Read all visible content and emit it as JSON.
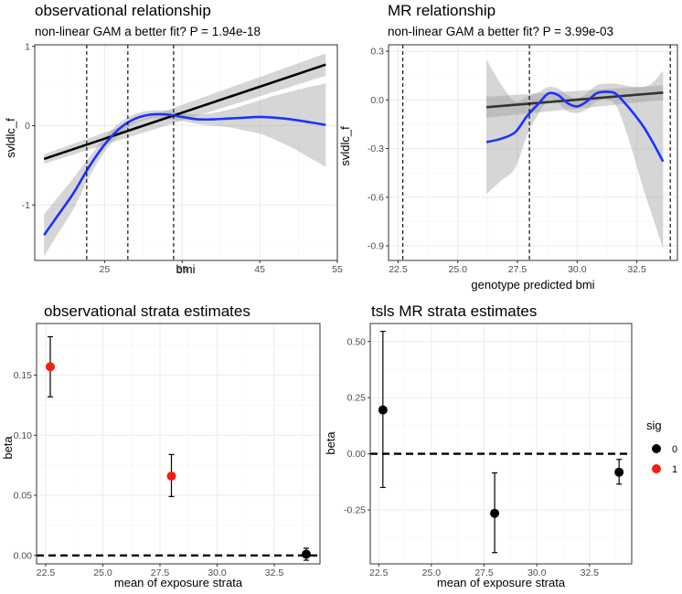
{
  "colors": {
    "linear_fit": "#000000",
    "mr_linear_fit": "#333333",
    "gam_fit": "#1a33ff",
    "ci_band": "#999999",
    "sig_0": "#000000",
    "sig_1": "#f2200d"
  },
  "legend": {
    "title": "sig",
    "items": [
      {
        "label": "0",
        "color": "#000000"
      },
      {
        "label": "1",
        "color": "#f2200d"
      }
    ]
  },
  "chart_data": [
    {
      "type": "line",
      "title": "observational relationship",
      "subtitle": "non-linear GAM a better fit? P = 1.94e-18",
      "xlabel": "bmi",
      "ylabel": "svldlc_f",
      "xlim": [
        16,
        55
      ],
      "ylim": [
        -1.7,
        1.02
      ],
      "xticks": [
        25,
        35,
        45,
        55
      ],
      "xtick_labels": [
        "25",
        "35",
        "45",
        "55"
      ],
      "yticks": [
        -1,
        0,
        1
      ],
      "ytick_labels": [
        "-1",
        "0",
        "1"
      ],
      "vlines": [
        22.7,
        28.0,
        33.9
      ],
      "series": [
        {
          "kind": "linear_fit",
          "x": [
            17.2,
            53.5
          ],
          "y": [
            -0.42,
            0.77
          ],
          "ci_lower": [
            -0.48,
            0.63
          ],
          "ci_upper": [
            -0.36,
            0.91
          ]
        },
        {
          "kind": "gam_fit",
          "x": [
            17.2,
            19,
            21,
            23,
            25,
            27,
            29,
            31,
            33,
            35,
            37,
            39,
            41,
            43,
            45,
            47,
            49,
            51,
            53.5
          ],
          "y": [
            -1.38,
            -1.13,
            -0.85,
            -0.52,
            -0.24,
            -0.03,
            0.09,
            0.14,
            0.14,
            0.11,
            0.08,
            0.08,
            0.09,
            0.1,
            0.11,
            0.1,
            0.08,
            0.05,
            0.01
          ],
          "ci_lower": [
            -1.65,
            -1.36,
            -1.05,
            -0.65,
            -0.33,
            -0.1,
            0.03,
            0.09,
            0.09,
            0.06,
            0.02,
            0.0,
            -0.02,
            -0.06,
            -0.1,
            -0.18,
            -0.27,
            -0.38,
            -0.52
          ],
          "ci_upper": [
            -1.12,
            -0.9,
            -0.66,
            -0.4,
            -0.15,
            0.04,
            0.15,
            0.19,
            0.19,
            0.16,
            0.14,
            0.16,
            0.2,
            0.26,
            0.32,
            0.38,
            0.43,
            0.48,
            0.53
          ]
        }
      ]
    },
    {
      "type": "line",
      "title": "MR relationship",
      "subtitle": "non-linear GAM a better fit? P = 3.99e-03",
      "xlabel": "genotype predicted bmi",
      "ylabel": "svldlc_f",
      "xlim": [
        22.1,
        34.2
      ],
      "ylim": [
        -0.99,
        0.34
      ],
      "xticks": [
        22.5,
        25,
        27.5,
        30,
        32.5
      ],
      "xtick_labels": [
        "22.5",
        "25.0",
        "27.5",
        "30.0",
        "32.5"
      ],
      "yticks": [
        -0.9,
        -0.6,
        -0.3,
        0,
        0.3
      ],
      "ytick_labels": [
        "-0.9",
        "-0.6",
        "-0.3",
        "0.0",
        "0.3"
      ],
      "vlines": [
        22.7,
        28.0,
        33.9
      ],
      "series": [
        {
          "kind": "linear_fit",
          "x": [
            26.2,
            33.6
          ],
          "y": [
            -0.045,
            0.045
          ],
          "ci_lower": [
            -0.11,
            0.0
          ],
          "ci_upper": [
            0.02,
            0.09
          ]
        },
        {
          "kind": "gam_fit",
          "x": [
            26.2,
            26.8,
            27.4,
            27.9,
            28.4,
            28.8,
            29.2,
            29.6,
            30.0,
            30.4,
            30.8,
            31.2,
            31.6,
            32.0,
            32.4,
            32.8,
            33.2,
            33.6
          ],
          "y": [
            -0.26,
            -0.24,
            -0.2,
            -0.1,
            -0.02,
            0.04,
            0.03,
            -0.02,
            -0.04,
            -0.01,
            0.04,
            0.05,
            0.04,
            -0.02,
            -0.09,
            -0.17,
            -0.27,
            -0.38
          ],
          "ci_lower": [
            -0.58,
            -0.5,
            -0.42,
            -0.22,
            -0.08,
            0.0,
            -0.02,
            -0.07,
            -0.08,
            -0.06,
            -0.01,
            0.0,
            -0.03,
            -0.17,
            -0.36,
            -0.56,
            -0.74,
            -0.92
          ],
          "ci_upper": [
            0.25,
            0.1,
            -0.01,
            0.02,
            0.05,
            0.08,
            0.07,
            0.03,
            0.01,
            0.04,
            0.09,
            0.1,
            0.1,
            0.09,
            0.08,
            0.08,
            0.11,
            0.18
          ]
        }
      ]
    },
    {
      "type": "scatter",
      "title": "observational strata estimates",
      "xlabel": "mean of exposure strata",
      "ylabel": "beta",
      "xlim": [
        22.1,
        34.5
      ],
      "ylim": [
        -0.007,
        0.193
      ],
      "xticks": [
        22.5,
        25,
        27.5,
        30,
        32.5
      ],
      "xtick_labels": [
        "22.5",
        "25.0",
        "27.5",
        "30.0",
        "32.5"
      ],
      "yticks": [
        0,
        0.05,
        0.1,
        0.15
      ],
      "ytick_labels": [
        "0.00",
        "0.05",
        "0.10",
        "0.15"
      ],
      "hline": 0,
      "points": [
        {
          "x": 22.7,
          "y": 0.157,
          "lower": 0.132,
          "upper": 0.182,
          "sig": "1"
        },
        {
          "x": 28.0,
          "y": 0.066,
          "lower": 0.049,
          "upper": 0.084,
          "sig": "1"
        },
        {
          "x": 33.9,
          "y": 0.001,
          "lower": -0.004,
          "upper": 0.006,
          "sig": "0"
        }
      ]
    },
    {
      "type": "scatter",
      "title": "tsls MR strata estimates",
      "xlabel": "mean of exposure strata",
      "ylabel": "beta",
      "xlim": [
        22.1,
        34.5
      ],
      "ylim": [
        -0.49,
        0.58
      ],
      "xticks": [
        22.5,
        25,
        27.5,
        30,
        32.5
      ],
      "xtick_labels": [
        "22.5",
        "25.0",
        "27.5",
        "30.0",
        "32.5"
      ],
      "yticks": [
        -0.25,
        0,
        0.25,
        0.5
      ],
      "ytick_labels": [
        "-0.25",
        "0.00",
        "0.25",
        "0.50"
      ],
      "hline": 0,
      "points": [
        {
          "x": 22.7,
          "y": 0.195,
          "lower": -0.15,
          "upper": 0.545,
          "sig": "0"
        },
        {
          "x": 28.0,
          "y": -0.265,
          "lower": -0.44,
          "upper": -0.085,
          "sig": "0"
        },
        {
          "x": 33.9,
          "y": -0.082,
          "lower": -0.135,
          "upper": -0.025,
          "sig": "0"
        }
      ]
    }
  ]
}
